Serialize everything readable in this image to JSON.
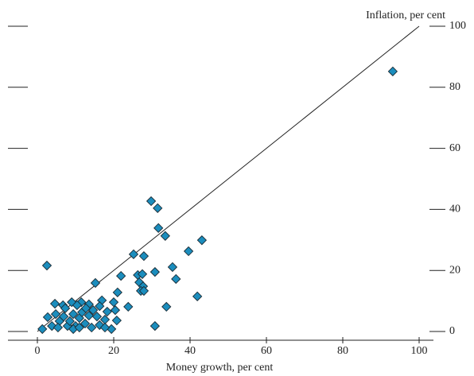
{
  "chart_data": {
    "type": "scatter",
    "x_label": "Money growth, per cent",
    "y_label": "Inflation, per cent",
    "xlim": [
      0,
      100
    ],
    "xticks": [
      0,
      20,
      40,
      60,
      80,
      100
    ],
    "ylim": [
      0,
      100
    ],
    "yticks": [
      0,
      20,
      40,
      60,
      80,
      100
    ],
    "diagonal": true,
    "color": "#1b8dbd",
    "x": [
      93.1,
      29.8,
      31.5,
      31.7,
      33.5,
      43.1,
      39.6,
      25.2,
      27.9,
      2.5,
      35.4,
      30.8,
      26.3,
      27.5,
      21.9,
      36.3,
      15.2,
      26.7,
      27.7,
      27.1,
      27.9,
      21.0,
      41.9,
      4.6,
      9.0,
      6.7,
      11.5,
      13.5,
      16.9,
      20.0,
      23.8,
      33.8,
      2.7,
      3.8,
      1.3,
      4.8,
      5.8,
      6.9,
      7.9,
      8.5,
      9.4,
      10.0,
      11.0,
      11.7,
      12.5,
      13.5,
      14.2,
      14.6,
      15.6,
      16.3,
      17.7,
      18.3,
      19.4,
      20.4,
      20.8,
      17.7,
      30.8,
      5.4,
      7.3,
      12.7,
      10.4,
      16.3,
      9.4,
      11.0
    ],
    "values": [
      85.2,
      42.7,
      40.4,
      33.9,
      31.3,
      29.9,
      26.3,
      25.3,
      24.7,
      21.6,
      21.1,
      19.5,
      18.5,
      18.8,
      18.2,
      17.2,
      15.9,
      16.1,
      14.8,
      13.3,
      13.3,
      12.8,
      11.5,
      9.1,
      9.6,
      8.6,
      9.6,
      8.9,
      10.2,
      9.6,
      8.1,
      8.1,
      4.7,
      1.8,
      0.8,
      5.7,
      3.4,
      4.9,
      1.8,
      3.4,
      5.7,
      1.8,
      4.4,
      6.3,
      2.6,
      5.2,
      1.3,
      7.0,
      4.9,
      2.1,
      3.9,
      6.5,
      0.8,
      7.0,
      3.6,
      1.3,
      1.8,
      1.3,
      7.6,
      7.6,
      8.6,
      8.3,
      0.8,
      1.3
    ]
  }
}
